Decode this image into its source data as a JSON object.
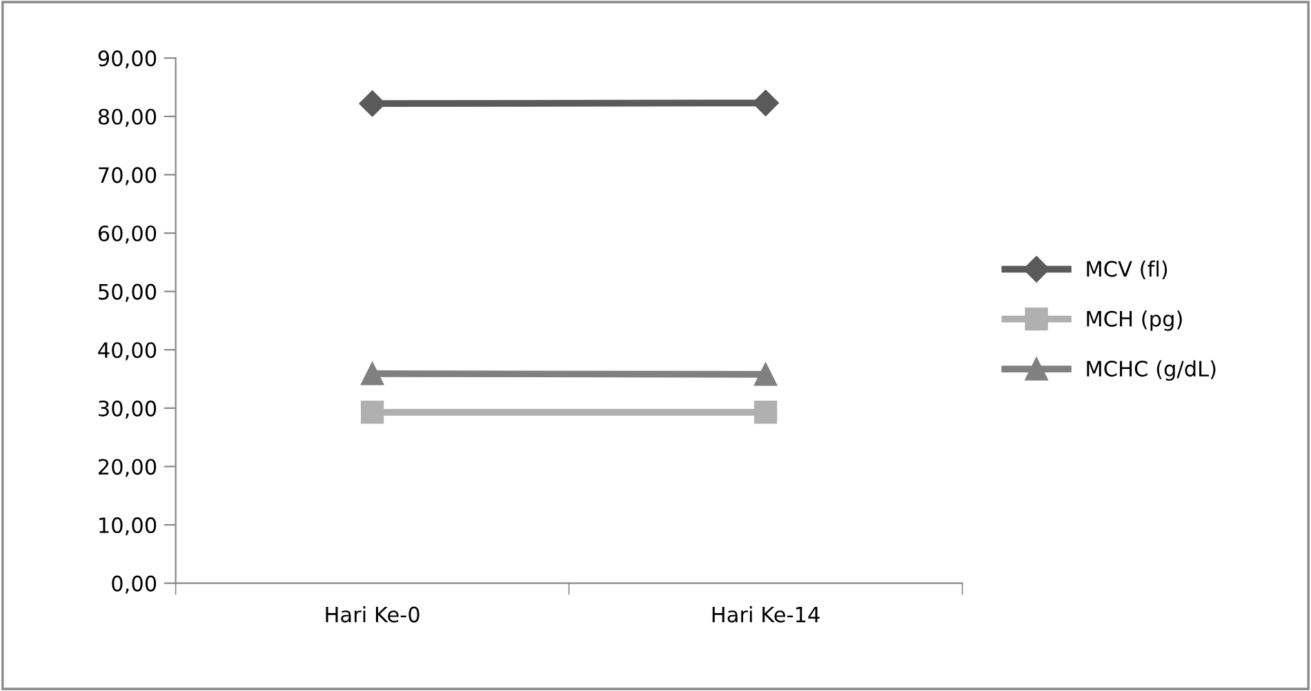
{
  "chart_data": {
    "type": "line",
    "categories": [
      "Hari Ke-0",
      "Hari Ke-14"
    ],
    "series": [
      {
        "name": "MCV (fl)",
        "color": "#5a5a5a",
        "marker": "diamond",
        "values": [
          82.2,
          82.3
        ]
      },
      {
        "name": "MCH (pg)",
        "color": "#b0b0b0",
        "marker": "square",
        "values": [
          29.3,
          29.3
        ]
      },
      {
        "name": "MCHC (g/dL)",
        "color": "#808080",
        "marker": "triangle",
        "values": [
          35.9,
          35.8
        ]
      }
    ],
    "ylim": [
      0,
      90
    ],
    "yticks": [
      {
        "value": 0,
        "label": "0,00"
      },
      {
        "value": 10,
        "label": "10,00"
      },
      {
        "value": 20,
        "label": "20,00"
      },
      {
        "value": 30,
        "label": "30,00"
      },
      {
        "value": 40,
        "label": "40,00"
      },
      {
        "value": 50,
        "label": "50,00"
      },
      {
        "value": 60,
        "label": "60,00"
      },
      {
        "value": 70,
        "label": "70,00"
      },
      {
        "value": 80,
        "label": "80,00"
      },
      {
        "value": 90,
        "label": "90,00"
      }
    ],
    "grid": false,
    "legend": "right",
    "line_style": "solid"
  }
}
